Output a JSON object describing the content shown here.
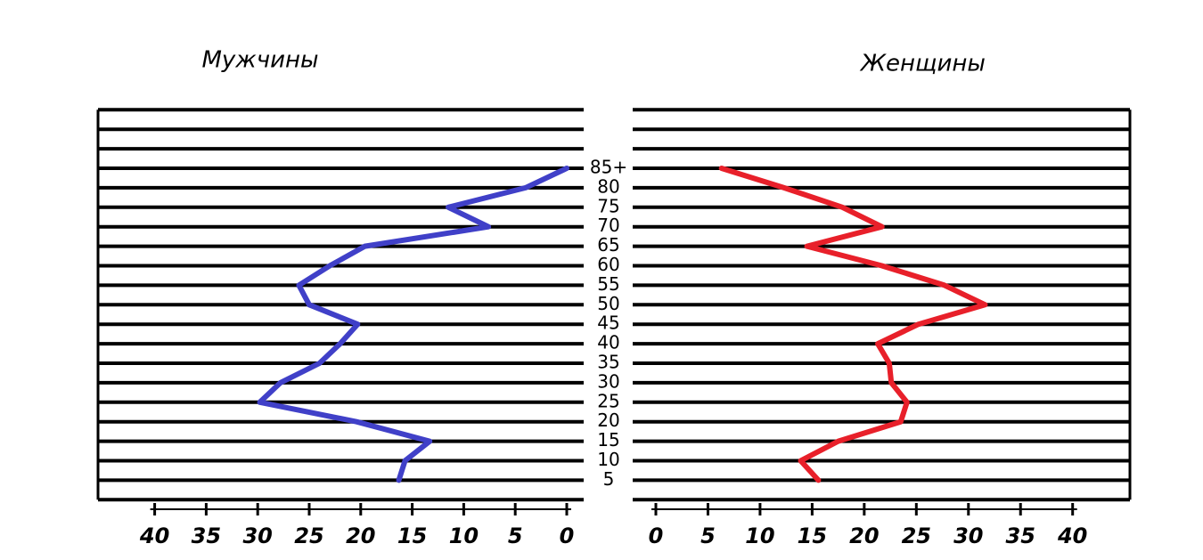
{
  "chart_data": [
    {
      "type": "line",
      "title": "Мужчины",
      "x_reversed": true,
      "categories": [
        "85+",
        "80",
        "75",
        "70",
        "65",
        "60",
        "55",
        "50",
        "45",
        "40",
        "35",
        "30",
        "25",
        "20",
        "15",
        "10",
        "5"
      ],
      "series": [
        {
          "color": "#4040c8",
          "values": [
            0,
            4,
            11.5,
            7.6,
            19.6,
            23,
            26,
            25,
            20.3,
            22,
            24,
            27.8,
            29.8,
            20.4,
            13.3,
            15.7,
            16.3
          ]
        }
      ],
      "xlim": [
        0,
        45.5
      ],
      "xticks": [
        0,
        5,
        10,
        15,
        20,
        25,
        30,
        35,
        40
      ]
    },
    {
      "type": "line",
      "title": "Женщины",
      "x_reversed": false,
      "series": [
        {
          "color": "#e8202a",
          "values": [
            6.3,
            12.3,
            17.9,
            21.7,
            14.5,
            21.7,
            27.7,
            31.6,
            25.2,
            21.3,
            22.4,
            22.6,
            24.1,
            23.5,
            17.5,
            13.9,
            15.6
          ]
        }
      ],
      "xlim": [
        0,
        45.5
      ],
      "xticks": [
        0,
        5,
        10,
        15,
        20,
        25,
        30,
        35,
        40
      ]
    }
  ]
}
